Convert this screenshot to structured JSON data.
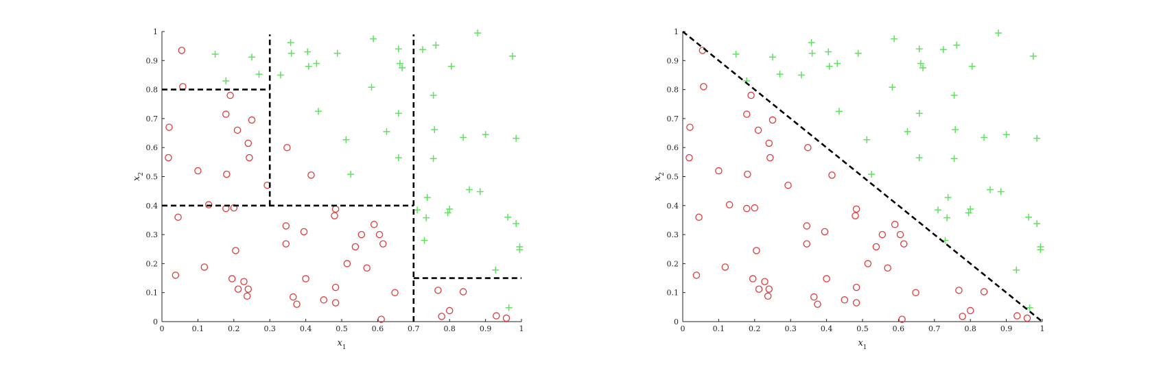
{
  "chart_data": [
    {
      "type": "scatter",
      "panel": "left",
      "title": "",
      "xlabel": "x1",
      "ylabel": "x2",
      "xlim": [
        0,
        1
      ],
      "ylim": [
        0,
        1
      ],
      "xticks": [
        "0",
        "0.1",
        "0.2",
        "0.3",
        "0.4",
        "0.5",
        "0.6",
        "0.7",
        "0.8",
        "0.9",
        "1"
      ],
      "yticks": [
        "0",
        "0.1",
        "0.2",
        "0.3",
        "0.4",
        "0.5",
        "0.6",
        "0.7",
        "0.8",
        "0.9",
        "1"
      ],
      "boundary_style": "black dashed",
      "boundaries": [
        {
          "x": [
            0,
            0.3
          ],
          "y": [
            0.8,
            0.8
          ]
        },
        {
          "x": [
            0.3,
            0.3
          ],
          "y": [
            0.4,
            0.99
          ]
        },
        {
          "x": [
            0,
            0.7
          ],
          "y": [
            0.4,
            0.4
          ]
        },
        {
          "x": [
            0.7,
            0.7
          ],
          "y": [
            0,
            0.99
          ]
        },
        {
          "x": [
            0.7,
            1.0
          ],
          "y": [
            0.15,
            0.15
          ]
        }
      ],
      "series": [
        {
          "marker": "circle",
          "color": "#dd3b3b",
          "points": [
            [
              0.055,
              0.935
            ],
            [
              0.058,
              0.81
            ],
            [
              0.19,
              0.78
            ],
            [
              0.178,
              0.715
            ],
            [
              0.25,
              0.695
            ],
            [
              0.02,
              0.67
            ],
            [
              0.21,
              0.66
            ],
            [
              0.24,
              0.615
            ],
            [
              0.348,
              0.6
            ],
            [
              0.018,
              0.565
            ],
            [
              0.243,
              0.565
            ],
            [
              0.1,
              0.52
            ],
            [
              0.18,
              0.508
            ],
            [
              0.415,
              0.505
            ],
            [
              0.293,
              0.47
            ],
            [
              0.13,
              0.403
            ],
            [
              0.178,
              0.39
            ],
            [
              0.2,
              0.392
            ],
            [
              0.483,
              0.388
            ],
            [
              0.045,
              0.36
            ],
            [
              0.48,
              0.365
            ],
            [
              0.345,
              0.33
            ],
            [
              0.59,
              0.335
            ],
            [
              0.555,
              0.3
            ],
            [
              0.395,
              0.31
            ],
            [
              0.605,
              0.3
            ],
            [
              0.345,
              0.268
            ],
            [
              0.538,
              0.258
            ],
            [
              0.615,
              0.268
            ],
            [
              0.205,
              0.245
            ],
            [
              0.515,
              0.2
            ],
            [
              0.118,
              0.188
            ],
            [
              0.57,
              0.185
            ],
            [
              0.038,
              0.16
            ],
            [
              0.195,
              0.148
            ],
            [
              0.4,
              0.148
            ],
            [
              0.228,
              0.138
            ],
            [
              0.212,
              0.112
            ],
            [
              0.24,
              0.112
            ],
            [
              0.483,
              0.118
            ],
            [
              0.768,
              0.108
            ],
            [
              0.838,
              0.103
            ],
            [
              0.648,
              0.1
            ],
            [
              0.237,
              0.088
            ],
            [
              0.365,
              0.085
            ],
            [
              0.375,
              0.06
            ],
            [
              0.45,
              0.075
            ],
            [
              0.483,
              0.065
            ],
            [
              0.8,
              0.038
            ],
            [
              0.778,
              0.018
            ],
            [
              0.61,
              0.008
            ],
            [
              0.93,
              0.02
            ],
            [
              0.958,
              0.012
            ]
          ]
        },
        {
          "marker": "plus",
          "color": "#5fe05f",
          "points": [
            [
              0.878,
              0.995
            ],
            [
              0.588,
              0.975
            ],
            [
              0.358,
              0.962
            ],
            [
              0.658,
              0.94
            ],
            [
              0.762,
              0.953
            ],
            [
              0.725,
              0.938
            ],
            [
              0.148,
              0.922
            ],
            [
              0.405,
              0.93
            ],
            [
              0.488,
              0.925
            ],
            [
              0.36,
              0.925
            ],
            [
              0.25,
              0.912
            ],
            [
              0.975,
              0.915
            ],
            [
              0.43,
              0.89
            ],
            [
              0.662,
              0.89
            ],
            [
              0.668,
              0.875
            ],
            [
              0.408,
              0.88
            ],
            [
              0.805,
              0.88
            ],
            [
              0.33,
              0.85
            ],
            [
              0.27,
              0.853
            ],
            [
              0.178,
              0.83
            ],
            [
              0.583,
              0.808
            ],
            [
              0.755,
              0.78
            ],
            [
              0.435,
              0.725
            ],
            [
              0.658,
              0.718
            ],
            [
              0.758,
              0.662
            ],
            [
              0.625,
              0.655
            ],
            [
              0.9,
              0.645
            ],
            [
              0.838,
              0.635
            ],
            [
              0.985,
              0.632
            ],
            [
              0.512,
              0.627
            ],
            [
              0.658,
              0.565
            ],
            [
              0.755,
              0.562
            ],
            [
              0.525,
              0.508
            ],
            [
              0.855,
              0.455
            ],
            [
              0.885,
              0.448
            ],
            [
              0.738,
              0.428
            ],
            [
              0.71,
              0.385
            ],
            [
              0.8,
              0.388
            ],
            [
              0.795,
              0.375
            ],
            [
              0.735,
              0.358
            ],
            [
              0.962,
              0.36
            ],
            [
              0.985,
              0.338
            ],
            [
              0.73,
              0.28
            ],
            [
              0.995,
              0.258
            ],
            [
              0.995,
              0.248
            ],
            [
              0.928,
              0.178
            ],
            [
              0.965,
              0.048
            ]
          ]
        }
      ]
    },
    {
      "type": "scatter",
      "panel": "right",
      "title": "",
      "xlabel": "x1",
      "ylabel": "x2",
      "xlim": [
        0,
        1
      ],
      "ylim": [
        0,
        1
      ],
      "xticks": [
        "0",
        "0.1",
        "0.2",
        "0.3",
        "0.4",
        "0.5",
        "0.6",
        "0.7",
        "0.8",
        "0.9",
        "1"
      ],
      "yticks": [
        "0",
        "0.1",
        "0.2",
        "0.3",
        "0.4",
        "0.5",
        "0.6",
        "0.7",
        "0.8",
        "0.9",
        "1"
      ],
      "boundary_style": "black dashed",
      "boundaries": [
        {
          "x": [
            0,
            1
          ],
          "y": [
            1,
            0
          ]
        }
      ],
      "series": "same as left panel"
    }
  ]
}
